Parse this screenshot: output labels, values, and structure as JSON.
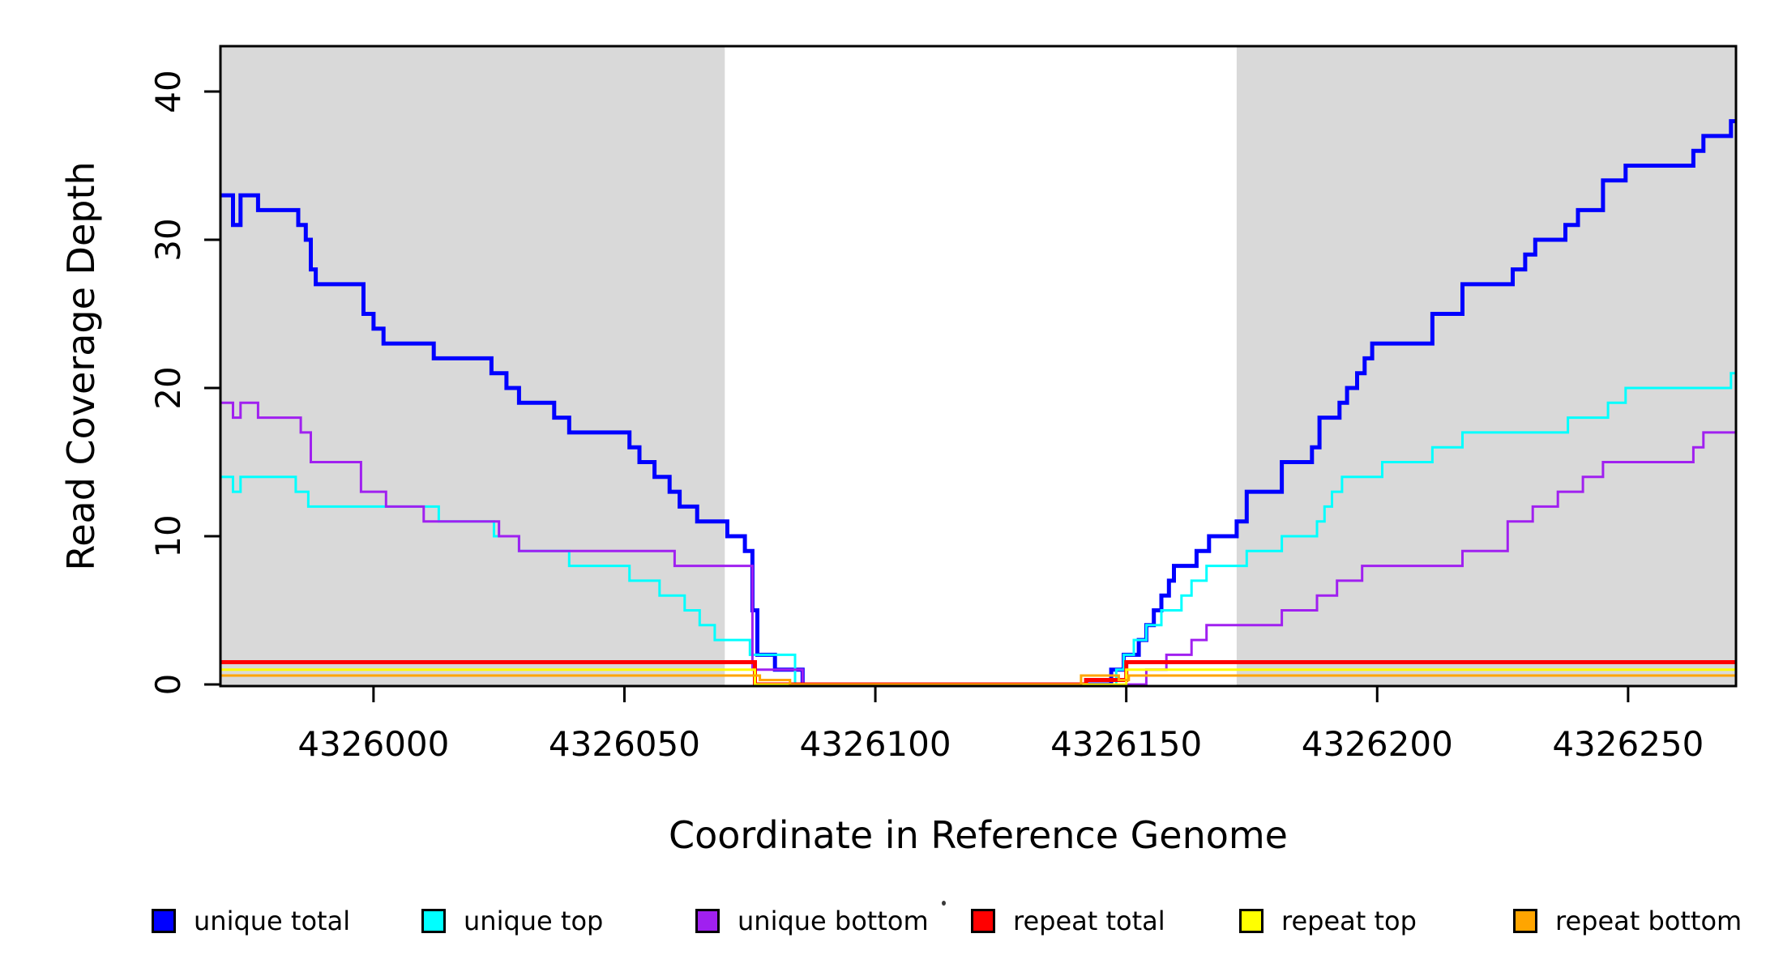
{
  "y_axis": {
    "label": "Read Coverage Depth",
    "ticks": [
      "0",
      "10",
      "20",
      "30",
      "40"
    ],
    "tick_values": [
      0,
      10,
      20,
      30,
      40
    ]
  },
  "x_axis": {
    "label": "Coordinate in Reference Genome",
    "ticks": [
      "4326000",
      "4326050",
      "4326100",
      "4326150",
      "4326200",
      "4326250"
    ],
    "tick_values": [
      4326000,
      4326050,
      4326100,
      4326150,
      4326200,
      4326250
    ]
  },
  "legend": {
    "items": [
      {
        "label": "unique total",
        "color": "#0000FF"
      },
      {
        "label": "unique top",
        "color": "#00FFFF"
      },
      {
        "label": "unique bottom",
        "color": "#A020F0"
      },
      {
        "label": "repeat total",
        "color": "#FF0000"
      },
      {
        "label": "repeat top",
        "color": "#FFFF00"
      },
      {
        "label": "repeat bottom",
        "color": "#FFA500"
      }
    ]
  },
  "chart_data": {
    "type": "line",
    "step": true,
    "title": "",
    "xlabel": "Coordinate in Reference Genome",
    "ylabel": "Read Coverage Depth",
    "xlim": [
      4325969.5,
      4326271.5
    ],
    "ylim": [
      0,
      43
    ],
    "grid": false,
    "legend_position": "bottom",
    "axis_color": "#000000",
    "shaded_regions": {
      "color": "#D9D9D9",
      "ranges": [
        [
          4325969.5,
          4326070
        ],
        [
          4326172,
          4326271.5
        ]
      ]
    },
    "series": [
      {
        "name": "unique total",
        "color": "#0000FF",
        "stroke_width": 5,
        "steps": [
          [
            4325969.5,
            33
          ],
          [
            4325972,
            31
          ],
          [
            4325973.5,
            33
          ],
          [
            4325977,
            32
          ],
          [
            4325985,
            31
          ],
          [
            4325986.5,
            30
          ],
          [
            4325987.5,
            28
          ],
          [
            4325988.5,
            27
          ],
          [
            4325998,
            25
          ],
          [
            4326000,
            24
          ],
          [
            4326002,
            23
          ],
          [
            4326012,
            22
          ],
          [
            4326023.5,
            21
          ],
          [
            4326026.5,
            20
          ],
          [
            4326029,
            19
          ],
          [
            4326036,
            18
          ],
          [
            4326039,
            17
          ],
          [
            4326051,
            16
          ],
          [
            4326053,
            15
          ],
          [
            4326056,
            14
          ],
          [
            4326059,
            13
          ],
          [
            4326061,
            12
          ],
          [
            4326064.5,
            11
          ],
          [
            4326070.5,
            10
          ],
          [
            4326074,
            9
          ],
          [
            4326075.5,
            5
          ],
          [
            4326076.5,
            2
          ],
          [
            4326080,
            1
          ],
          [
            4326085.5,
            0
          ],
          [
            4326147,
            1
          ],
          [
            4326149.5,
            2
          ],
          [
            4326152.5,
            3
          ],
          [
            4326154,
            4
          ],
          [
            4326155.5,
            5
          ],
          [
            4326157,
            6
          ],
          [
            4326158.5,
            7
          ],
          [
            4326159.5,
            8
          ],
          [
            4326164,
            9
          ],
          [
            4326166.5,
            10
          ],
          [
            4326172,
            11
          ],
          [
            4326174,
            13
          ],
          [
            4326181,
            15
          ],
          [
            4326187,
            16
          ],
          [
            4326188.5,
            18
          ],
          [
            4326192.5,
            19
          ],
          [
            4326194,
            20
          ],
          [
            4326196,
            21
          ],
          [
            4326197.5,
            22
          ],
          [
            4326199,
            23
          ],
          [
            4326211,
            25
          ],
          [
            4326217,
            27
          ],
          [
            4326227,
            28
          ],
          [
            4326229.5,
            29
          ],
          [
            4326231.5,
            30
          ],
          [
            4326237.5,
            31
          ],
          [
            4326240,
            32
          ],
          [
            4326245,
            34
          ],
          [
            4326249.5,
            35
          ],
          [
            4326263,
            36
          ],
          [
            4326265,
            37
          ],
          [
            4326270.5,
            38
          ]
        ]
      },
      {
        "name": "unique top",
        "color": "#00FFFF",
        "stroke_width": 3,
        "steps": [
          [
            4325969.5,
            14
          ],
          [
            4325972,
            13
          ],
          [
            4325973.5,
            14
          ],
          [
            4325984.5,
            13
          ],
          [
            4325987,
            12
          ],
          [
            4326013,
            11
          ],
          [
            4326024,
            10
          ],
          [
            4326029,
            9
          ],
          [
            4326039,
            8
          ],
          [
            4326051,
            7
          ],
          [
            4326057,
            6
          ],
          [
            4326062,
            5
          ],
          [
            4326065,
            4
          ],
          [
            4326068,
            3
          ],
          [
            4326075,
            2
          ],
          [
            4326084,
            0
          ],
          [
            4326148,
            1
          ],
          [
            4326149.5,
            2
          ],
          [
            4326151.5,
            3
          ],
          [
            4326154,
            4
          ],
          [
            4326157,
            5
          ],
          [
            4326161,
            6
          ],
          [
            4326163,
            7
          ],
          [
            4326166,
            8
          ],
          [
            4326174,
            9
          ],
          [
            4326181,
            10
          ],
          [
            4326188,
            11
          ],
          [
            4326189.5,
            12
          ],
          [
            4326191,
            13
          ],
          [
            4326193,
            14
          ],
          [
            4326201,
            15
          ],
          [
            4326211,
            16
          ],
          [
            4326217,
            17
          ],
          [
            4326238,
            18
          ],
          [
            4326246,
            19
          ],
          [
            4326249.5,
            20
          ],
          [
            4326270.5,
            21
          ]
        ]
      },
      {
        "name": "unique bottom",
        "color": "#A020F0",
        "stroke_width": 3,
        "steps": [
          [
            4325969.5,
            19
          ],
          [
            4325972,
            18
          ],
          [
            4325973.5,
            19
          ],
          [
            4325977,
            18
          ],
          [
            4325985.5,
            17
          ],
          [
            4325987.5,
            15
          ],
          [
            4325997.5,
            13
          ],
          [
            4326002.5,
            12
          ],
          [
            4326010,
            11
          ],
          [
            4326025,
            10
          ],
          [
            4326029,
            9
          ],
          [
            4326060,
            8
          ],
          [
            4326075.5,
            1
          ],
          [
            4326085.5,
            0
          ],
          [
            4326154,
            1
          ],
          [
            4326158,
            2
          ],
          [
            4326163,
            3
          ],
          [
            4326166,
            4
          ],
          [
            4326181,
            5
          ],
          [
            4326188,
            6
          ],
          [
            4326192,
            7
          ],
          [
            4326197,
            8
          ],
          [
            4326217,
            9
          ],
          [
            4326226,
            11
          ],
          [
            4326231,
            12
          ],
          [
            4326236,
            13
          ],
          [
            4326241,
            14
          ],
          [
            4326245,
            15
          ],
          [
            4326263,
            16
          ],
          [
            4326265,
            17
          ]
        ]
      },
      {
        "name": "repeat total",
        "color": "#FF0000",
        "stroke_width": 5,
        "steps": [
          [
            4325969.5,
            1.5
          ],
          [
            4326076,
            0
          ],
          [
            4326142,
            0.3
          ],
          [
            4326150,
            1.5
          ]
        ]
      },
      {
        "name": "repeat top",
        "color": "#FFFF00",
        "stroke_width": 3,
        "steps": [
          [
            4325969.5,
            1.0
          ],
          [
            4326076,
            0
          ],
          [
            4326150,
            1.0
          ]
        ]
      },
      {
        "name": "repeat bottom",
        "color": "#FFA500",
        "stroke_width": 3,
        "steps": [
          [
            4325969.5,
            0.6
          ],
          [
            4326077,
            0.3
          ],
          [
            4326083,
            0
          ],
          [
            4326141,
            0.6
          ],
          [
            4326148.5,
            0.3
          ],
          [
            4326150.5,
            0.6
          ]
        ]
      }
    ]
  }
}
